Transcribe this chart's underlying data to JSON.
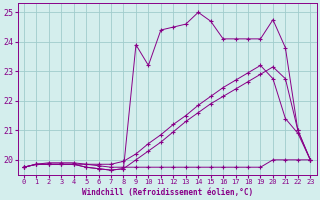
{
  "xlabel": "Windchill (Refroidissement éolien,°C)",
  "background_color": "#d4eeed",
  "grid_color": "#a0cccc",
  "line_color": "#880088",
  "xlim": [
    -0.5,
    23.5
  ],
  "ylim": [
    19.5,
    25.3
  ],
  "yticks": [
    20,
    21,
    22,
    23,
    24,
    25
  ],
  "xticks": [
    0,
    1,
    2,
    3,
    4,
    5,
    6,
    7,
    8,
    9,
    10,
    11,
    12,
    13,
    14,
    15,
    16,
    17,
    18,
    19,
    20,
    21,
    22,
    23
  ],
  "series1_x": [
    0,
    1,
    2,
    3,
    4,
    5,
    6,
    7,
    8,
    9,
    10,
    11,
    12,
    13,
    14,
    15,
    16,
    17,
    18,
    19,
    20,
    21,
    22,
    23
  ],
  "series1_y": [
    19.75,
    19.85,
    19.85,
    19.85,
    19.85,
    19.85,
    19.8,
    19.75,
    19.75,
    19.75,
    19.75,
    19.75,
    19.75,
    19.75,
    19.75,
    19.75,
    19.75,
    19.75,
    19.75,
    19.75,
    20.0,
    20.0,
    20.0,
    20.0
  ],
  "series2_x": [
    0,
    1,
    2,
    3,
    4,
    5,
    6,
    7,
    8,
    9,
    10,
    11,
    12,
    13,
    14,
    15,
    16,
    17,
    18,
    19,
    20,
    21,
    22,
    23
  ],
  "series2_y": [
    19.75,
    19.85,
    19.85,
    19.85,
    19.85,
    19.75,
    19.7,
    19.65,
    19.7,
    20.0,
    20.3,
    20.6,
    20.95,
    21.3,
    21.6,
    21.9,
    22.15,
    22.4,
    22.65,
    22.9,
    23.15,
    22.75,
    21.0,
    20.0
  ],
  "series3_x": [
    0,
    1,
    2,
    3,
    4,
    5,
    6,
    7,
    8,
    9,
    10,
    11,
    12,
    13,
    14,
    15,
    16,
    17,
    18,
    19,
    20,
    21,
    22,
    23
  ],
  "series3_y": [
    19.75,
    19.85,
    19.85,
    19.85,
    19.85,
    19.75,
    19.7,
    19.65,
    19.7,
    23.9,
    23.2,
    24.4,
    24.5,
    24.6,
    25.0,
    24.7,
    24.1,
    24.1,
    24.1,
    24.1,
    24.75,
    23.8,
    21.0,
    20.0
  ],
  "series4_x": [
    0,
    1,
    2,
    3,
    4,
    5,
    6,
    7,
    8,
    9,
    10,
    11,
    12,
    13,
    14,
    15,
    16,
    17,
    18,
    19,
    20,
    21,
    22,
    23
  ],
  "series4_y": [
    19.75,
    19.85,
    19.9,
    19.9,
    19.9,
    19.85,
    19.85,
    19.85,
    19.95,
    20.2,
    20.55,
    20.85,
    21.2,
    21.5,
    21.85,
    22.15,
    22.45,
    22.7,
    22.95,
    23.2,
    22.75,
    21.4,
    20.9,
    20.0
  ]
}
